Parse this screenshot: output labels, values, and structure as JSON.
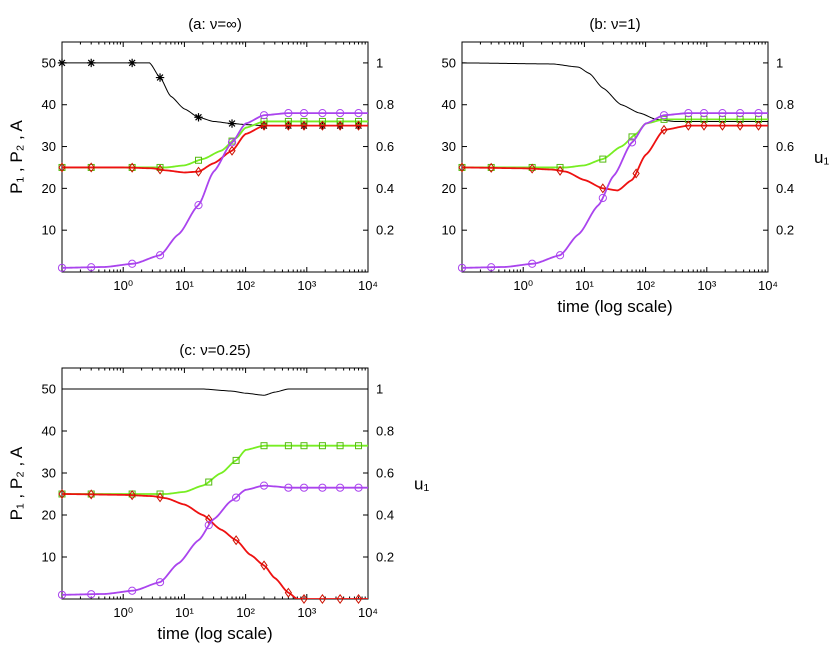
{
  "chart_data": [
    {
      "id": "a",
      "type": "line",
      "title": "(a: ν=∞)",
      "xscale": "log",
      "xlim": [
        0.1,
        10000
      ],
      "xticks": [
        "10⁰",
        "10¹",
        "10²",
        "10³",
        "10⁴"
      ],
      "xlabel": "",
      "ylabel_left": "P₁ , P₂ , A",
      "ylim_left": [
        0,
        55
      ],
      "yticks_left": [
        "10",
        "20",
        "30",
        "40",
        "50"
      ],
      "ylabel_right": "",
      "ylim_right": [
        0,
        1.1
      ],
      "yticks_right": [
        "0.2",
        "0.4",
        "0.6",
        "0.8",
        "1"
      ],
      "series": [
        {
          "name": "u1",
          "axis": "right",
          "color": "#000000",
          "marker": "star",
          "x": [
            0.1,
            0.3,
            1,
            2,
            2.7,
            4,
            6,
            10,
            17,
            30,
            60,
            100,
            200,
            500,
            10000
          ],
          "y": [
            1.0,
            1.0,
            1.0,
            1.0,
            1.0,
            0.93,
            0.84,
            0.78,
            0.74,
            0.72,
            0.71,
            0.705,
            0.7,
            0.7,
            0.7
          ],
          "marker_x": [
            0.1,
            0.3,
            1.4,
            4,
            17,
            60,
            200,
            500,
            900,
            1800,
            3500,
            7000
          ]
        },
        {
          "name": "P1",
          "axis": "left",
          "color": "#77ee22",
          "marker": "square",
          "x": [
            0.1,
            1,
            3,
            5,
            10,
            20,
            40,
            70,
            100,
            200,
            500,
            10000
          ],
          "y": [
            25,
            25,
            25,
            25,
            25.5,
            27,
            29,
            32,
            34.5,
            36,
            36,
            36
          ],
          "marker_x": [
            0.1,
            0.3,
            1.4,
            4,
            17,
            60,
            200,
            500,
            900,
            1800,
            3500,
            7000
          ]
        },
        {
          "name": "P2",
          "axis": "left",
          "color": "#ee1111",
          "marker": "diamond",
          "x": [
            0.1,
            1,
            3,
            5,
            10,
            17,
            30,
            60,
            100,
            200,
            500,
            10000
          ],
          "y": [
            25,
            25,
            24.8,
            24.3,
            23.8,
            24,
            26,
            29,
            33,
            35,
            35,
            35
          ],
          "marker_x": [
            0.1,
            0.3,
            1.4,
            4,
            17,
            60,
            200,
            500,
            900,
            1800,
            3500,
            7000
          ]
        },
        {
          "name": "A",
          "axis": "left",
          "color": "#aa44ee",
          "marker": "circle",
          "x": [
            0.1,
            0.5,
            1.5,
            4,
            8,
            17,
            30,
            60,
            100,
            200,
            500,
            10000
          ],
          "y": [
            1,
            1.2,
            2,
            4,
            9,
            16,
            24,
            31,
            35.5,
            37.5,
            38,
            38
          ],
          "marker_x": [
            0.1,
            0.3,
            1.4,
            4,
            17,
            60,
            200,
            500,
            900,
            1800,
            3500,
            7000
          ]
        }
      ]
    },
    {
      "id": "b",
      "type": "line",
      "title": "(b: ν=1)",
      "xscale": "log",
      "xlim": [
        0.1,
        10000
      ],
      "xticks": [
        "10⁰",
        "10¹",
        "10²",
        "10³",
        "10⁴"
      ],
      "xlabel": "time (log scale)",
      "ylabel_left": "",
      "ylim_left": [
        0,
        55
      ],
      "yticks_left": [
        "10",
        "20",
        "30",
        "40",
        "50"
      ],
      "ylabel_right": "u₁",
      "ylim_right": [
        0,
        1.1
      ],
      "yticks_right": [
        "0.2",
        "0.4",
        "0.6",
        "0.8",
        "1"
      ],
      "series": [
        {
          "name": "u1",
          "axis": "right",
          "color": "#000000",
          "marker": "none",
          "x": [
            0.1,
            3,
            8,
            12,
            20,
            40,
            80,
            150,
            300,
            10000
          ],
          "y": [
            1.0,
            0.995,
            0.98,
            0.95,
            0.88,
            0.8,
            0.76,
            0.73,
            0.72,
            0.72
          ],
          "marker_x": []
        },
        {
          "name": "P1",
          "axis": "left",
          "color": "#77ee22",
          "marker": "square",
          "x": [
            0.1,
            1,
            5,
            10,
            20,
            40,
            70,
            100,
            200,
            500,
            10000
          ],
          "y": [
            25,
            25,
            25,
            25.5,
            27,
            30,
            33,
            35.5,
            36.5,
            36.5,
            36.5
          ],
          "marker_x": [
            0.1,
            0.3,
            1.4,
            4,
            20,
            60,
            200,
            500,
            900,
            1800,
            3500,
            7000
          ]
        },
        {
          "name": "P2",
          "axis": "left",
          "color": "#ee1111",
          "marker": "diamond",
          "x": [
            0.1,
            1,
            3,
            5,
            10,
            20,
            35,
            60,
            100,
            200,
            500,
            10000
          ],
          "y": [
            25,
            24.8,
            24.5,
            24,
            22,
            20,
            19.5,
            22,
            28,
            34,
            35,
            35
          ],
          "marker_x": [
            0.1,
            0.3,
            1.4,
            4,
            20,
            70,
            200,
            500,
            900,
            1800,
            3500,
            7000
          ]
        },
        {
          "name": "A",
          "axis": "left",
          "color": "#aa44ee",
          "marker": "circle",
          "x": [
            0.1,
            0.5,
            1.5,
            4,
            8,
            17,
            30,
            60,
            100,
            200,
            500,
            10000
          ],
          "y": [
            1,
            1.2,
            2,
            4,
            9,
            16,
            23,
            31,
            35.5,
            37.5,
            38,
            38
          ],
          "marker_x": [
            0.1,
            0.3,
            1.4,
            4,
            20,
            60,
            200,
            500,
            900,
            1800,
            3500,
            7000
          ]
        }
      ]
    },
    {
      "id": "c",
      "type": "line",
      "title": "(c: ν=0.25)",
      "xscale": "log",
      "xlim": [
        0.1,
        10000
      ],
      "xticks": [
        "10⁰",
        "10¹",
        "10²",
        "10³",
        "10⁴"
      ],
      "xlabel": "time (log scale)",
      "ylabel_left": "P₁ , P₂ , A",
      "ylim_left": [
        0,
        55
      ],
      "yticks_left": [
        "10",
        "20",
        "30",
        "40",
        "50"
      ],
      "ylabel_right": "u₁",
      "ylim_right": [
        0,
        1.1
      ],
      "yticks_right": [
        "0.2",
        "0.4",
        "0.6",
        "0.8",
        "1"
      ],
      "series": [
        {
          "name": "u1",
          "axis": "right",
          "color": "#000000",
          "marker": "none",
          "x": [
            0.1,
            20,
            60,
            100,
            200,
            300,
            500,
            10000
          ],
          "y": [
            1.0,
            1.0,
            0.99,
            0.98,
            0.97,
            0.985,
            1.0,
            1.0
          ],
          "marker_x": []
        },
        {
          "name": "P1",
          "axis": "left",
          "color": "#77ee22",
          "marker": "square",
          "x": [
            0.1,
            1,
            5,
            10,
            20,
            40,
            70,
            100,
            200,
            500,
            10000
          ],
          "y": [
            25,
            25,
            25,
            25.5,
            27,
            30,
            33,
            35.5,
            36.5,
            36.5,
            36.5
          ],
          "marker_x": [
            0.1,
            0.3,
            1.4,
            4,
            25,
            70,
            200,
            500,
            900,
            1800,
            3500,
            7000
          ]
        },
        {
          "name": "P2",
          "axis": "left",
          "color": "#ee1111",
          "marker": "diamond",
          "x": [
            0.1,
            1,
            3,
            5,
            10,
            20,
            40,
            70,
            120,
            200,
            300,
            500,
            700,
            10000
          ],
          "y": [
            25,
            24.8,
            24.5,
            24,
            22.5,
            20,
            16.5,
            14,
            10.5,
            8,
            5,
            1.5,
            0,
            0
          ],
          "marker_x": [
            0.1,
            0.3,
            1.4,
            4,
            25,
            70,
            200,
            500,
            900,
            1800,
            3500,
            7000
          ]
        },
        {
          "name": "A",
          "axis": "left",
          "color": "#aa44ee",
          "marker": "circle",
          "x": [
            0.1,
            0.5,
            1.5,
            4,
            8,
            17,
            30,
            60,
            100,
            200,
            300,
            500,
            10000
          ],
          "y": [
            1,
            1.2,
            2,
            4,
            8.5,
            14,
            19,
            23.5,
            26,
            27,
            26.8,
            26.5,
            26.5
          ],
          "marker_x": [
            0.1,
            0.3,
            1.4,
            4,
            25,
            70,
            200,
            500,
            900,
            1800,
            3500,
            7000
          ]
        }
      ]
    }
  ]
}
